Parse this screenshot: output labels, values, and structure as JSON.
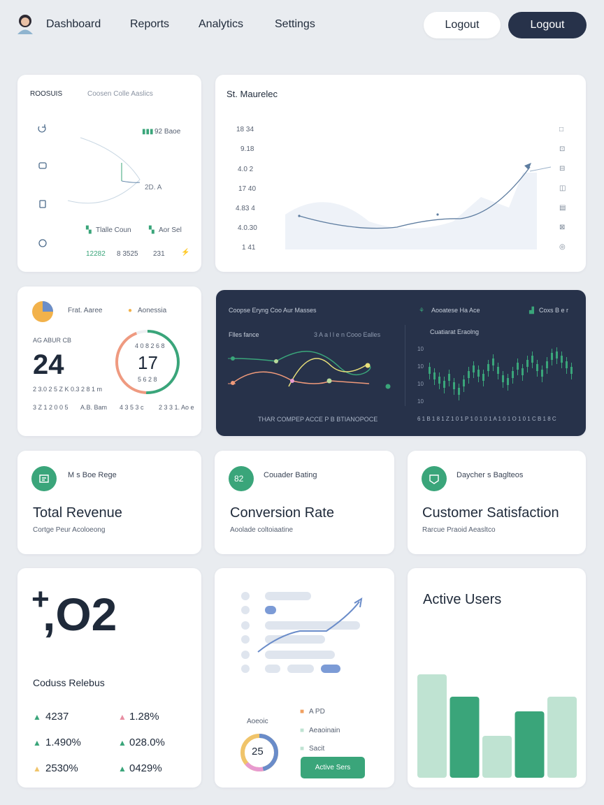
{
  "nav": {
    "links": [
      "Dashboard",
      "Reports",
      "Analytics",
      "Settings"
    ],
    "logout_light": "Logout",
    "logout_dark": "Logout"
  },
  "card1": {
    "title": "ROOSUIS",
    "subtitle": "Coosen Colle Aaslics",
    "badge_value": "92 Baoe",
    "pct": "2D. A",
    "legend_a": "Tlalle Coun",
    "legend_b": "Aor Sel",
    "stats": [
      "12282",
      "8 3525",
      "231"
    ]
  },
  "card2": {
    "title": "St. Maurelec",
    "y_ticks": [
      "18 34",
      "9.18",
      "4.0 2",
      "17 40",
      "4.83 4",
      "4.0.30",
      "1 41"
    ]
  },
  "card3": {
    "label_a": "Frat. Aaree",
    "label_b": "Aonessia",
    "caption": "AG ABUR CB",
    "big_value": "24",
    "sub": "2 3.0 2 5 Z K  0.3 2 8 1 m",
    "ring_top": "4 0 8 2 6 8",
    "ring_value": "17",
    "ring_bottom": "5 6 2 8",
    "stats": [
      "3 Z 1 2 0 0 5",
      "A.B. Bam",
      "4 3 5 3 c",
      "2 3 3 1. Ao e"
    ]
  },
  "card4": {
    "title": "Coopse Eryng  Coo Aur Masses",
    "legend": "Flles  fance",
    "legend2": "3  A a l l e n Cooo Ealles",
    "footer": "THAR COMPEP  ACCE P B BTIANOPOCE",
    "right_title": "Aooatese Ha Ace",
    "right_badge": "Coxs B e r",
    "right_sub": "Cuatiarat Eraolng",
    "right_ticks": [
      "10",
      "10",
      "10",
      "10"
    ],
    "right_footer": "6 1 B 1 8 1 Z 1 0 1 P 1 0 1 0 1 A 1 0 1 O 1 0 1 C B 1 8 C"
  },
  "metric1": {
    "tag": "M s Boe Rege",
    "title": "Total Revenue",
    "sub": "Cortge Peur Acoloeong",
    "icon": "revenue-icon"
  },
  "metric2": {
    "tag": "Couader Bating",
    "title": "Conversion Rate",
    "sub": "Aoolade coltoiaatine",
    "icon": "conversion-icon",
    "badge": "82"
  },
  "metric3": {
    "tag": "Daycher s Baglteos",
    "title": "Customer Satisfaction",
    "sub": "Rarcue Praoid Aeasltco",
    "icon": "satisfaction-icon"
  },
  "card_big": {
    "value": ",O2",
    "plus": "+",
    "title": "Coduss Relebus",
    "stats": [
      {
        "v": "4237",
        "c": "#3aa57a"
      },
      {
        "v": "1.28%",
        "c": "#e88fa3"
      },
      {
        "v": "1.490%",
        "c": "#3aa57a"
      },
      {
        "v": "028.0%",
        "c": "#3aa57a"
      },
      {
        "v": "2530%",
        "c": "#f0c46a"
      },
      {
        "v": "0429%",
        "c": "#3aa57a"
      }
    ]
  },
  "card_mid": {
    "donut_label": "Aoeoic",
    "donut_value": "25",
    "legend": [
      {
        "t": "A PD",
        "c": "#f0a060"
      },
      {
        "t": "Aeaoinain",
        "c": "#bfe3d2"
      },
      {
        "t": "Sacit",
        "c": "#bfe3d2"
      }
    ],
    "button": "Active Sers"
  },
  "card_active": {
    "title": "Active Users",
    "chart_data": {
      "type": "bar",
      "values": [
        148,
        116,
        60,
        95,
        116
      ],
      "colors": [
        "#bfe3d2",
        "#3aa57a",
        "#bfe3d2",
        "#3aa57a",
        "#bfe3d2"
      ]
    }
  },
  "colors": {
    "accent": "#3aa57a",
    "dark": "#27324a",
    "bg": "#e9ecf0"
  }
}
